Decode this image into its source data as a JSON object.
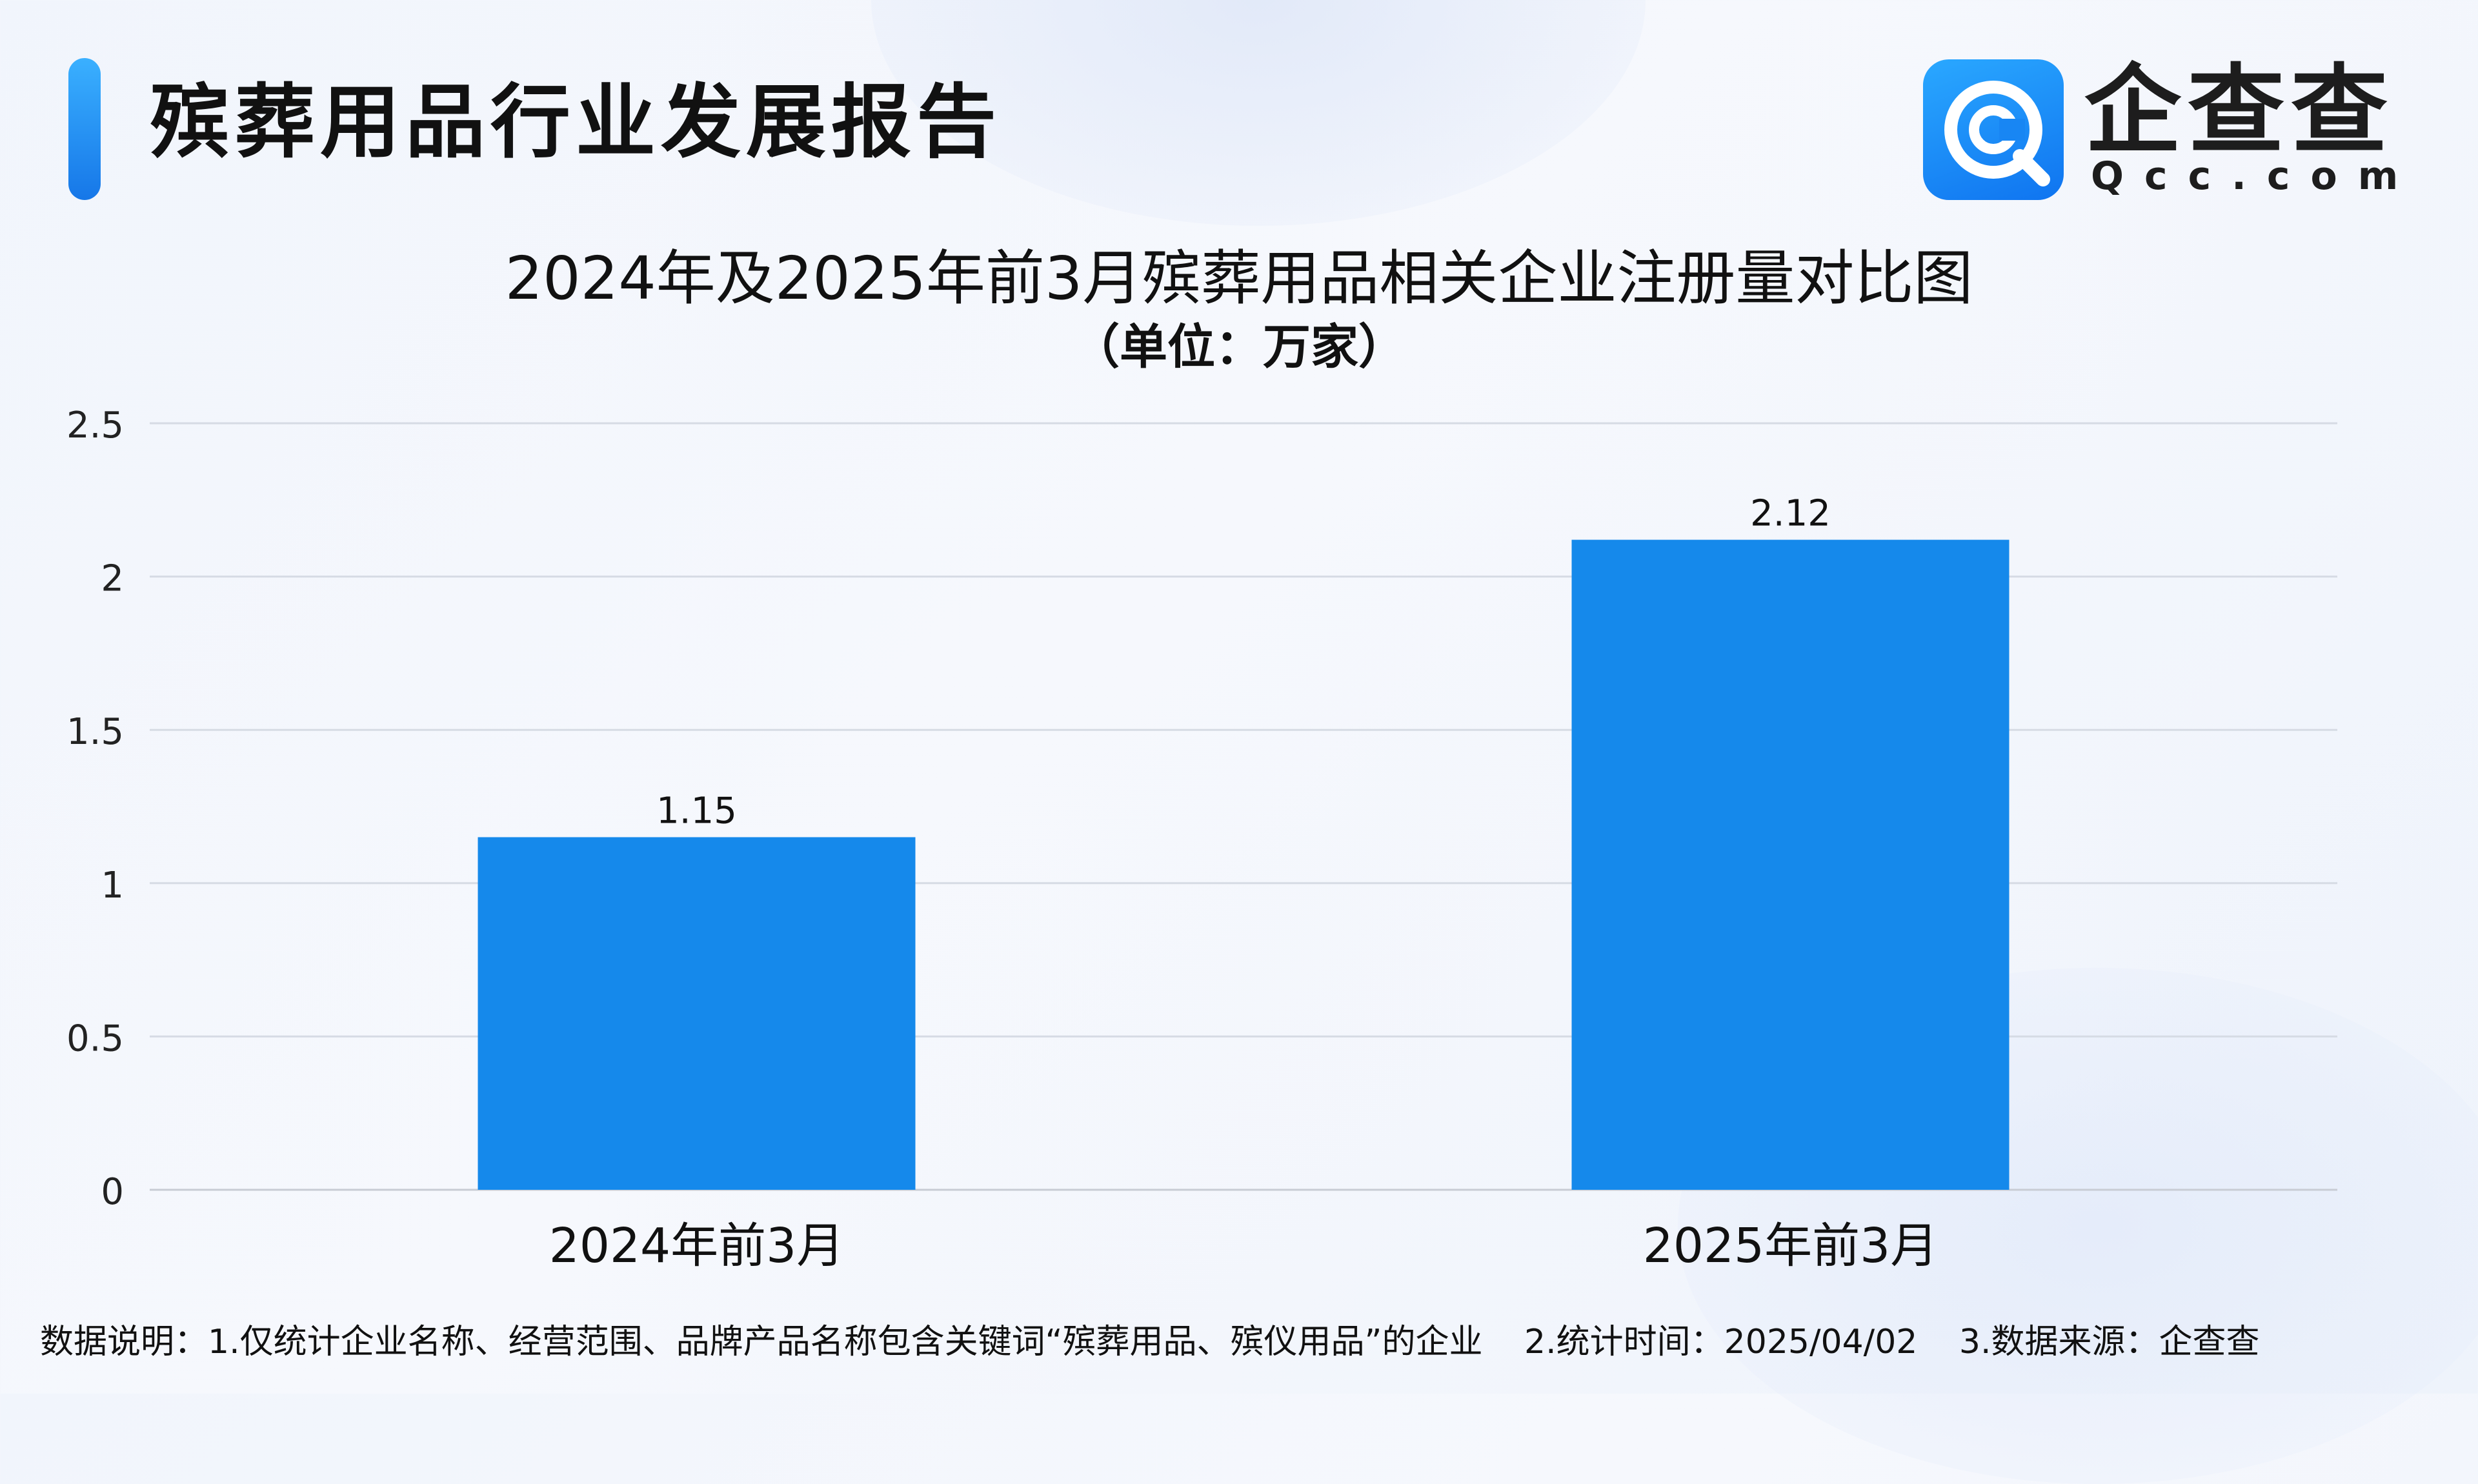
{
  "header": {
    "title": "殡葬用品行业发展报告",
    "logo_name": "企查查",
    "logo_domain": "Qcc.com"
  },
  "chart_data": {
    "type": "bar",
    "title": "2024年及2025年前3月殡葬用品相关企业注册量对比图",
    "subtitle": "（单位：万家）",
    "categories": [
      "2024年前3月",
      "2025年前3月"
    ],
    "values": [
      1.15,
      2.12
    ],
    "data_labels": [
      "1.15",
      "2.12"
    ],
    "y_ticks": [
      "0",
      "0.5",
      "1",
      "1.5",
      "2",
      "2.5"
    ],
    "ylim": [
      0,
      2.5
    ],
    "grid": true,
    "bar_color": "#1589eb",
    "grid_color": "#d6dbe4",
    "axis_color": "#c8ccd4"
  },
  "footer": {
    "note1": "数据说明：1.仅统计企业名称、经营范围、品牌产品名称包含关键词“殡葬用品、殡仪用品”的企业",
    "note2": "2.统计时间：2025/04/02",
    "note3": "3.数据来源：企查查"
  }
}
